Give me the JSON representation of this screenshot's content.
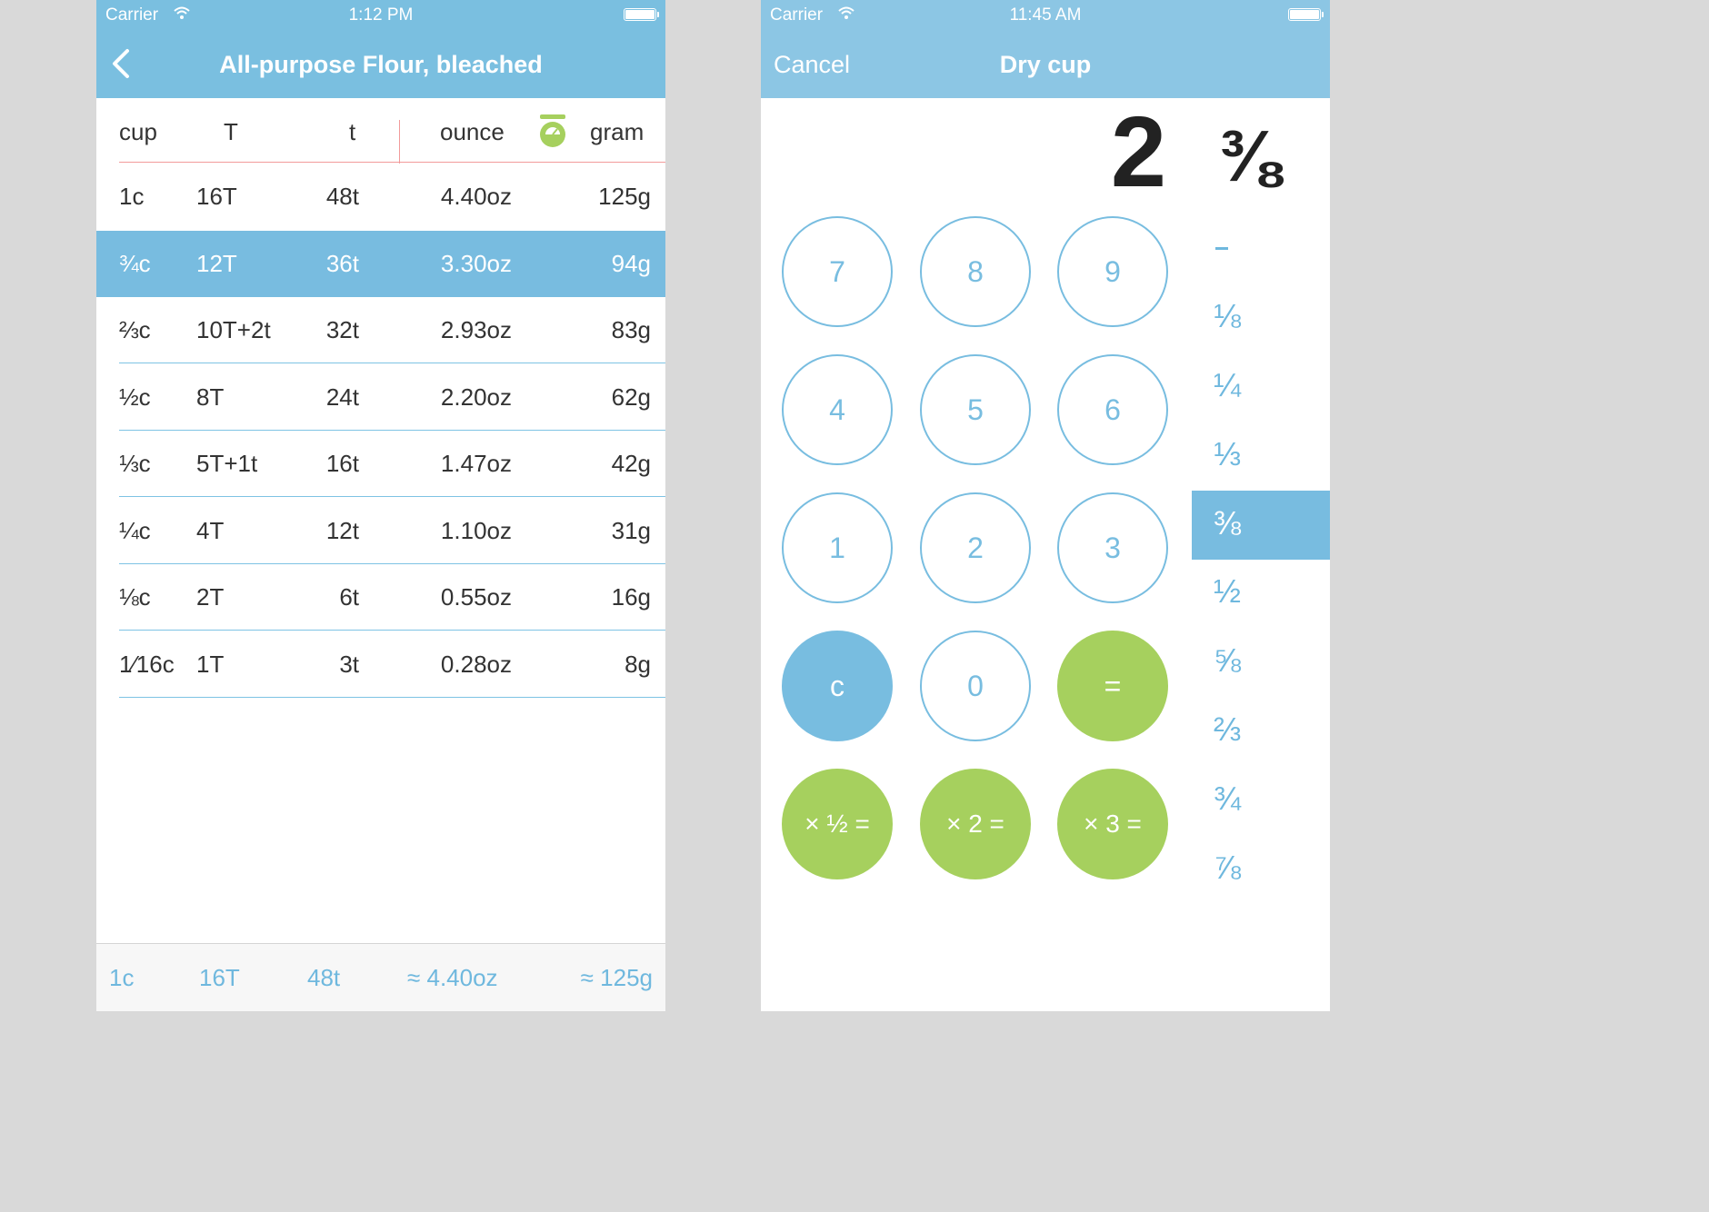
{
  "left_screen": {
    "status": {
      "carrier": "Carrier",
      "time": "1:12 PM"
    },
    "nav": {
      "title": "All-purpose Flour, bleached",
      "back_icon": "chevron-left-icon"
    },
    "columns": {
      "cup": "cup",
      "T": "T",
      "t": "t",
      "ounce": "ounce",
      "gram": "gram",
      "scale_icon": "scale-icon"
    },
    "rows": [
      {
        "cup": "1c",
        "T": "16T",
        "t": "48t",
        "oz": "4.40oz",
        "g": "125g"
      },
      {
        "cup": "¾c",
        "T": "12T",
        "t": "36t",
        "oz": "3.30oz",
        "g": "94g"
      },
      {
        "cup": "⅔c",
        "T": "10T+2t",
        "t": "32t",
        "oz": "2.93oz",
        "g": "83g"
      },
      {
        "cup": "½c",
        "T": "8T",
        "t": "24t",
        "oz": "2.20oz",
        "g": "62g"
      },
      {
        "cup": "⅓c",
        "T": "5T+1t",
        "t": "16t",
        "oz": "1.47oz",
        "g": "42g"
      },
      {
        "cup": "¼c",
        "T": "4T",
        "t": "12t",
        "oz": "1.10oz",
        "g": "31g"
      },
      {
        "cup": "⅛c",
        "T": "2T",
        "t": "6t",
        "oz": "0.55oz",
        "g": "16g"
      },
      {
        "cup": "1⁄16c",
        "T": "1T",
        "t": "3t",
        "oz": "0.28oz",
        "g": "8g"
      }
    ],
    "selected_row": 1,
    "footer": {
      "cup": "1c",
      "T": "16T",
      "t": "48t",
      "oz": "≈ 4.40oz",
      "g": "≈ 125g"
    }
  },
  "right_screen": {
    "status": {
      "carrier": "Carrier",
      "time": "11:45 AM"
    },
    "nav": {
      "cancel": "Cancel",
      "title": "Dry cup"
    },
    "display": {
      "whole": "2",
      "fraction": "⅜"
    },
    "keys": {
      "k7": "7",
      "k8": "8",
      "k9": "9",
      "k4": "4",
      "k5": "5",
      "k6": "6",
      "k1": "1",
      "k2": "2",
      "k3": "3",
      "kc": "c",
      "k0": "0",
      "keq": "=",
      "khalf": "× ½ =",
      "kx2": "× 2 =",
      "kx3": "× 3 ="
    },
    "fractions": [
      "-",
      "⅛",
      "¼",
      "⅓",
      "⅜",
      "½",
      "⅝",
      "⅔",
      "¾",
      "⅞"
    ],
    "selected_fraction": 4
  },
  "colors": {
    "header_left": "#7abfe0",
    "header_right": "#8cc6e4",
    "accent_blue": "#78bde0",
    "accent_green": "#a6d05e",
    "divider_red": "#f29a9a"
  }
}
